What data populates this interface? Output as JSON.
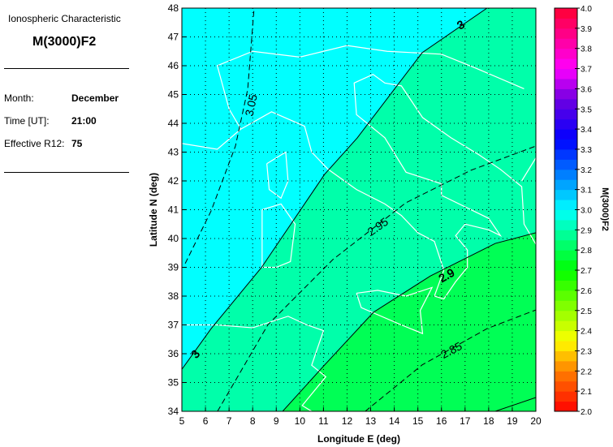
{
  "panel": {
    "subtitle": "Ionospheric Characteristic",
    "title": "M(3000)F2",
    "rows": [
      {
        "label": "Month:",
        "value": "December"
      },
      {
        "label": "Time [UT]:",
        "value": "21:00"
      },
      {
        "label": "Effective R12:",
        "value": "75"
      }
    ]
  },
  "chart_data": {
    "type": "contour-map",
    "xlabel": "Longitude E (deg)",
    "ylabel": "Latitude N (deg)",
    "xlim": [
      5,
      20
    ],
    "ylim": [
      34,
      48
    ],
    "xticks": [
      "5",
      "6",
      "7",
      "8",
      "9",
      "10",
      "11",
      "12",
      "13",
      "14",
      "15",
      "16",
      "17",
      "18",
      "19",
      "20"
    ],
    "yticks": [
      "34",
      "35",
      "36",
      "37",
      "38",
      "39",
      "40",
      "41",
      "42",
      "43",
      "44",
      "45",
      "46",
      "47",
      "48"
    ],
    "grid": true,
    "region_colors": {
      "above_3": "#00FFFF",
      "between_2.9_3": "#00FFAA",
      "below_2.9": "#00FF55"
    },
    "coastline_color": "#FFFFFF",
    "contours": [
      {
        "level": "3.05",
        "style": "dashed",
        "points": [
          [
            5.14,
            39.13
          ],
          [
            6.24,
            40.96
          ],
          [
            7.27,
            43.21
          ],
          [
            7.79,
            45.18
          ],
          [
            8.06,
            48
          ]
        ],
        "labels": [
          {
            "text": "3.05",
            "at": [
              8.1,
              44.6
            ],
            "angle": -78
          }
        ]
      },
      {
        "level": "3",
        "style": "solid",
        "points": [
          [
            5,
            35.46
          ],
          [
            6.24,
            36.87
          ],
          [
            8.37,
            38.99
          ],
          [
            11.05,
            42.23
          ],
          [
            12.43,
            43.49
          ],
          [
            15.18,
            46.45
          ],
          [
            17.93,
            48
          ]
        ],
        "labels": [
          {
            "text": "3",
            "at": [
              5.7,
              35.9
            ],
            "angle": -50
          },
          {
            "text": "3",
            "at": [
              16.9,
              47.3
            ],
            "angle": -30
          }
        ]
      },
      {
        "level": "2.95",
        "style": "dashed",
        "points": [
          [
            6.51,
            34
          ],
          [
            8.65,
            37.01
          ],
          [
            11.4,
            39.27
          ],
          [
            14.49,
            41.24
          ],
          [
            17.25,
            42.37
          ],
          [
            20,
            43.21
          ]
        ],
        "labels": [
          {
            "text": "2.95",
            "at": [
              13.4,
              40.3
            ],
            "angle": -35
          }
        ]
      },
      {
        "level": "2.9",
        "style": "solid",
        "points": [
          [
            9.27,
            34
          ],
          [
            11.05,
            35.61
          ],
          [
            13.12,
            37.44
          ],
          [
            15.53,
            38.7
          ],
          [
            18.28,
            39.83
          ],
          [
            20,
            40.2
          ]
        ],
        "labels": [
          {
            "text": "2.9",
            "at": [
              16.3,
              38.6
            ],
            "angle": -30
          }
        ]
      },
      {
        "level": "2.85",
        "style": "dashed",
        "points": [
          [
            12.77,
            34
          ],
          [
            15.18,
            35.61
          ],
          [
            17.93,
            36.87
          ],
          [
            20,
            37.52
          ]
        ],
        "labels": [
          {
            "text": "2.85",
            "at": [
              16.5,
              36.0
            ],
            "angle": -28
          }
        ]
      },
      {
        "level": "2.8",
        "style": "solid",
        "points": [
          [
            18.28,
            34
          ],
          [
            20,
            34.48
          ]
        ],
        "labels": []
      }
    ],
    "colorbar": {
      "label": "M(3000)F2",
      "range": [
        2.0,
        4.0
      ],
      "ticks": [
        "2.0",
        "2.1",
        "2.2",
        "2.3",
        "2.4",
        "2.5",
        "2.6",
        "2.7",
        "2.8",
        "2.9",
        "3.0",
        "3.1",
        "3.2",
        "3.3",
        "3.4",
        "3.5",
        "3.6",
        "3.7",
        "3.8",
        "3.9",
        "4.0"
      ],
      "color_stops": [
        [
          2.0,
          "#FF0000"
        ],
        [
          2.2,
          "#FF8000"
        ],
        [
          2.35,
          "#FFFF00"
        ],
        [
          2.7,
          "#00FF00"
        ],
        [
          3.0,
          "#00FFFF"
        ],
        [
          3.35,
          "#0000FF"
        ],
        [
          3.55,
          "#7000E0"
        ],
        [
          3.7,
          "#FF00FF"
        ],
        [
          4.0,
          "#FF0030"
        ]
      ]
    }
  }
}
